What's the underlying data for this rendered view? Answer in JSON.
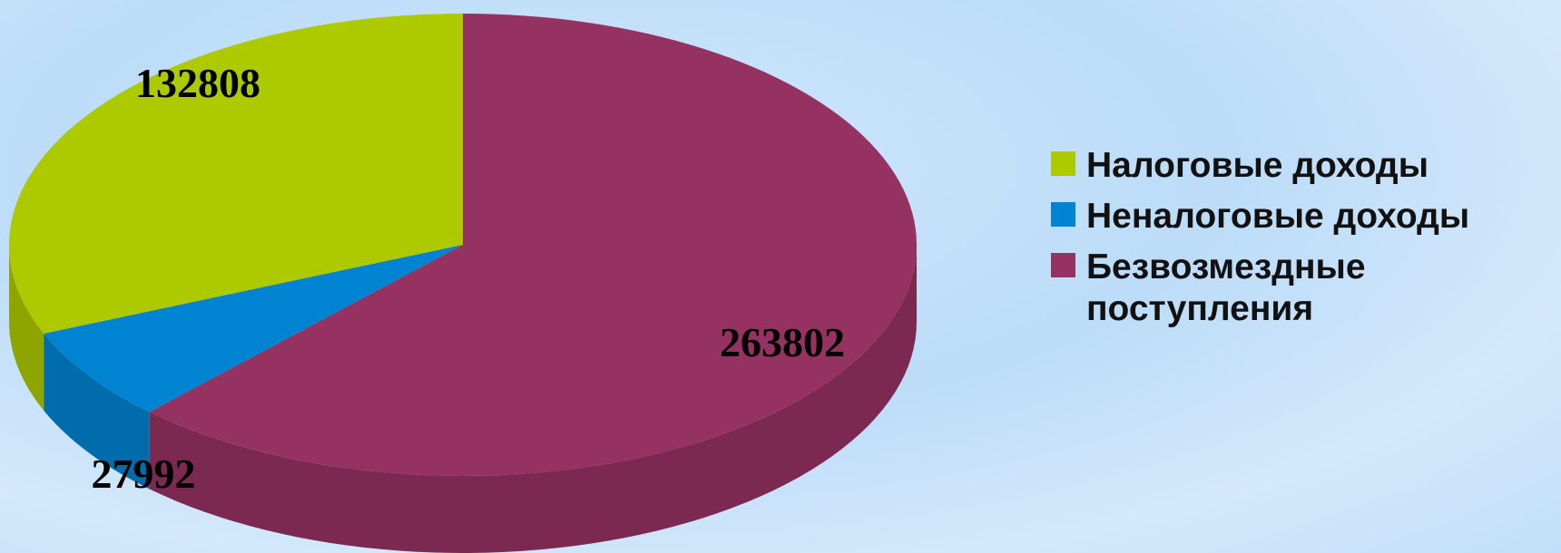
{
  "chart_data": {
    "type": "pie",
    "categories": [
      "Налоговые доходы",
      "Неналоговые доходы",
      "Безвозмездные поступления"
    ],
    "values": [
      132808,
      27992,
      263802
    ],
    "colors": [
      "#adc900",
      "#0084d1",
      "#963262"
    ],
    "legend": "right"
  }
}
